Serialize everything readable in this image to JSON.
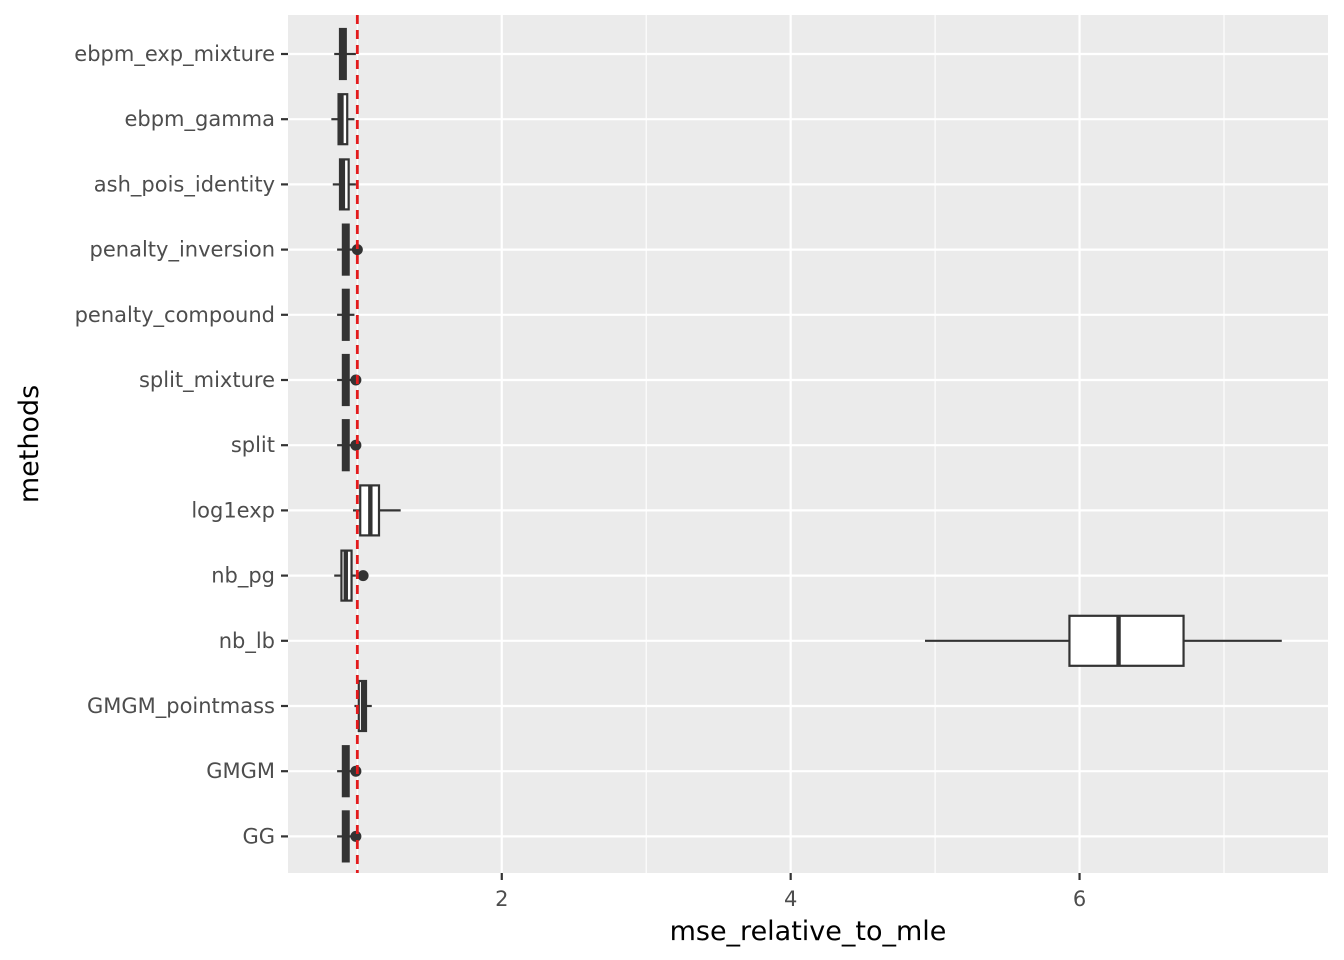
{
  "chart_data": {
    "type": "boxplot",
    "orientation": "horizontal",
    "xlabel": "mse_relative_to_mle",
    "ylabel": "methods",
    "xlim": [
      0.52,
      7.72
    ],
    "x_ticks": [
      2,
      4,
      6
    ],
    "grid": true,
    "reference_line": {
      "x": 1.0,
      "style": "dashed",
      "color": "#e31a1c"
    },
    "categories": [
      "ebpm_exp_mixture",
      "ebpm_gamma",
      "ash_pois_identity",
      "penalty_inversion",
      "penalty_compound",
      "split_mixture",
      "split",
      "log1exp",
      "nb_pg",
      "nb_lb",
      "GMGM_pointmass",
      "GMGM",
      "GG"
    ],
    "boxes": [
      {
        "name": "ebpm_exp_mixture",
        "whisker_low": 0.84,
        "q1": 0.88,
        "median": 0.9,
        "q3": 0.92,
        "whisker_high": 0.99,
        "outliers": []
      },
      {
        "name": "ebpm_gamma",
        "whisker_low": 0.82,
        "q1": 0.87,
        "median": 0.89,
        "q3": 0.93,
        "whisker_high": 0.98,
        "outliers": []
      },
      {
        "name": "ash_pois_identity",
        "whisker_low": 0.83,
        "q1": 0.88,
        "median": 0.9,
        "q3": 0.94,
        "whisker_high": 0.99,
        "outliers": []
      },
      {
        "name": "penalty_inversion",
        "whisker_low": 0.86,
        "q1": 0.9,
        "median": 0.92,
        "q3": 0.94,
        "whisker_high": 0.97,
        "outliers": [
          1.0
        ]
      },
      {
        "name": "penalty_compound",
        "whisker_low": 0.86,
        "q1": 0.9,
        "median": 0.92,
        "q3": 0.94,
        "whisker_high": 0.98,
        "outliers": []
      },
      {
        "name": "split_mixture",
        "whisker_low": 0.86,
        "q1": 0.9,
        "median": 0.92,
        "q3": 0.94,
        "whisker_high": 0.96,
        "outliers": [
          0.99
        ]
      },
      {
        "name": "split",
        "whisker_low": 0.86,
        "q1": 0.9,
        "median": 0.92,
        "q3": 0.94,
        "whisker_high": 0.96,
        "outliers": [
          0.99
        ]
      },
      {
        "name": "log1exp",
        "whisker_low": 0.97,
        "q1": 1.02,
        "median": 1.09,
        "q3": 1.15,
        "whisker_high": 1.3,
        "outliers": []
      },
      {
        "name": "nb_pg",
        "whisker_low": 0.84,
        "q1": 0.89,
        "median": 0.92,
        "q3": 0.96,
        "whisker_high": 0.99,
        "outliers": [
          1.04
        ]
      },
      {
        "name": "nb_lb",
        "whisker_low": 4.93,
        "q1": 5.93,
        "median": 6.27,
        "q3": 6.72,
        "whisker_high": 7.4,
        "outliers": []
      },
      {
        "name": "GMGM_pointmass",
        "whisker_low": 0.98,
        "q1": 1.01,
        "median": 1.04,
        "q3": 1.06,
        "whisker_high": 1.1,
        "outliers": []
      },
      {
        "name": "GMGM",
        "whisker_low": 0.86,
        "q1": 0.9,
        "median": 0.92,
        "q3": 0.94,
        "whisker_high": 0.97,
        "outliers": [
          0.99
        ]
      },
      {
        "name": "GG",
        "whisker_low": 0.86,
        "q1": 0.9,
        "median": 0.92,
        "q3": 0.94,
        "whisker_high": 0.97,
        "outliers": [
          0.99
        ]
      }
    ],
    "colors": {
      "panel_background": "#ebebeb",
      "grid": "#ffffff",
      "box_fill": "#ffffff",
      "box_stroke": "#333333",
      "outlier": "#333333",
      "reference_line": "#e31a1c"
    }
  }
}
